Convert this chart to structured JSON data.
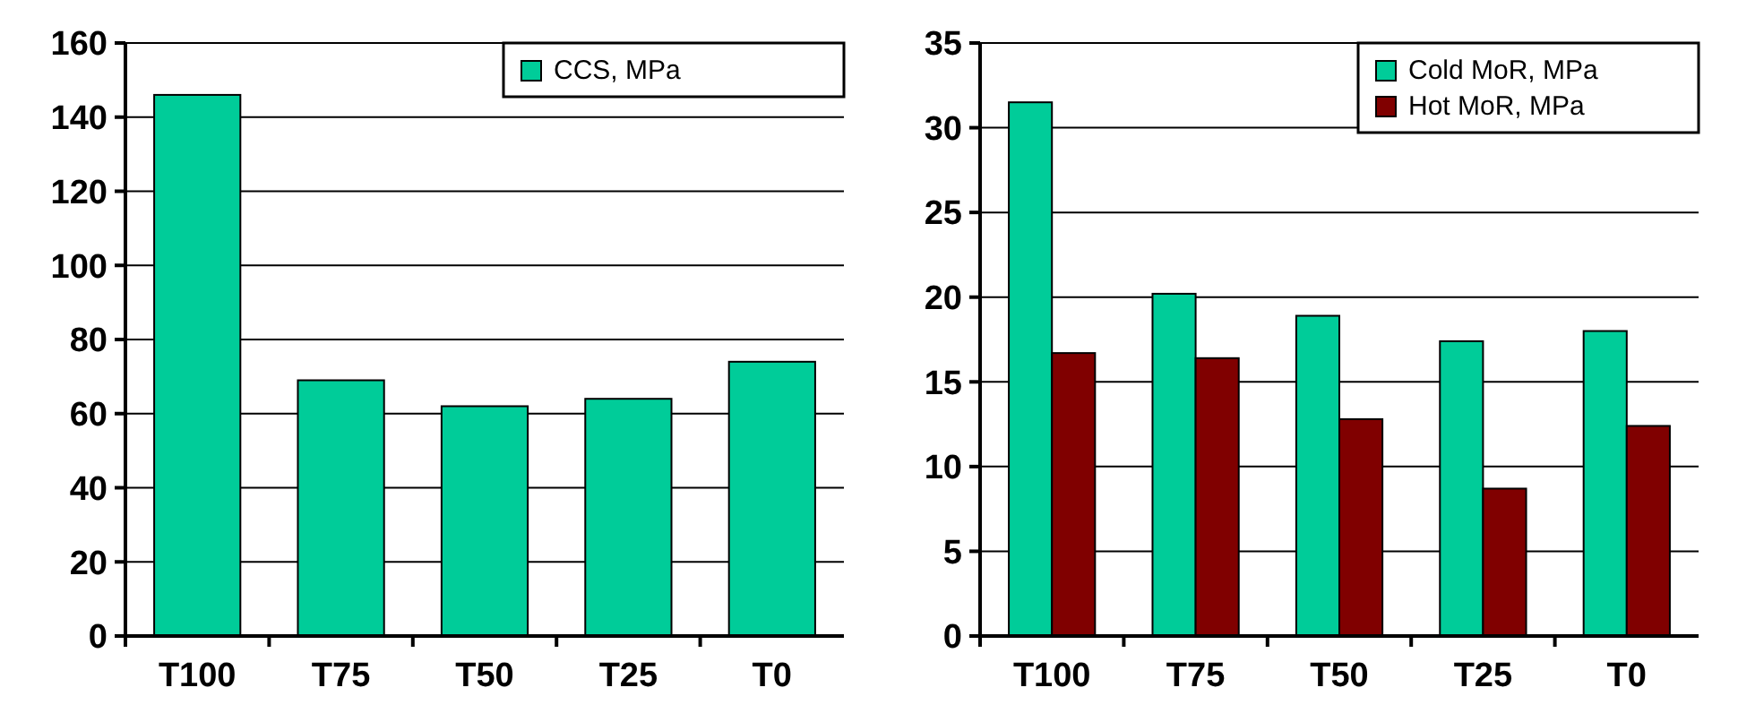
{
  "chart_data": [
    {
      "type": "bar",
      "categories": [
        "T100",
        "T75",
        "T50",
        "T25",
        "T0"
      ],
      "series": [
        {
          "name": "CCS, MPa",
          "color": "#00cc99",
          "values": [
            146,
            69,
            62,
            64,
            74
          ]
        }
      ],
      "ylim": [
        0,
        160
      ],
      "yticks": [
        0,
        20,
        40,
        60,
        80,
        100,
        120,
        140,
        160
      ],
      "grid": "y",
      "legend": "top right"
    },
    {
      "type": "bar",
      "categories": [
        "T100",
        "T75",
        "T50",
        "T25",
        "T0"
      ],
      "series": [
        {
          "name": "Cold MoR, MPa",
          "color": "#00cc99",
          "values": [
            31.5,
            20.2,
            18.9,
            17.4,
            18
          ]
        },
        {
          "name": "Hot MoR, MPa",
          "color": "#800000",
          "values": [
            16.7,
            16.4,
            12.8,
            8.7,
            12.4
          ]
        }
      ],
      "ylim": [
        0,
        35
      ],
      "yticks": [
        0,
        5,
        10,
        15,
        20,
        25,
        30,
        35
      ],
      "grid": "y",
      "legend": "top right"
    }
  ]
}
